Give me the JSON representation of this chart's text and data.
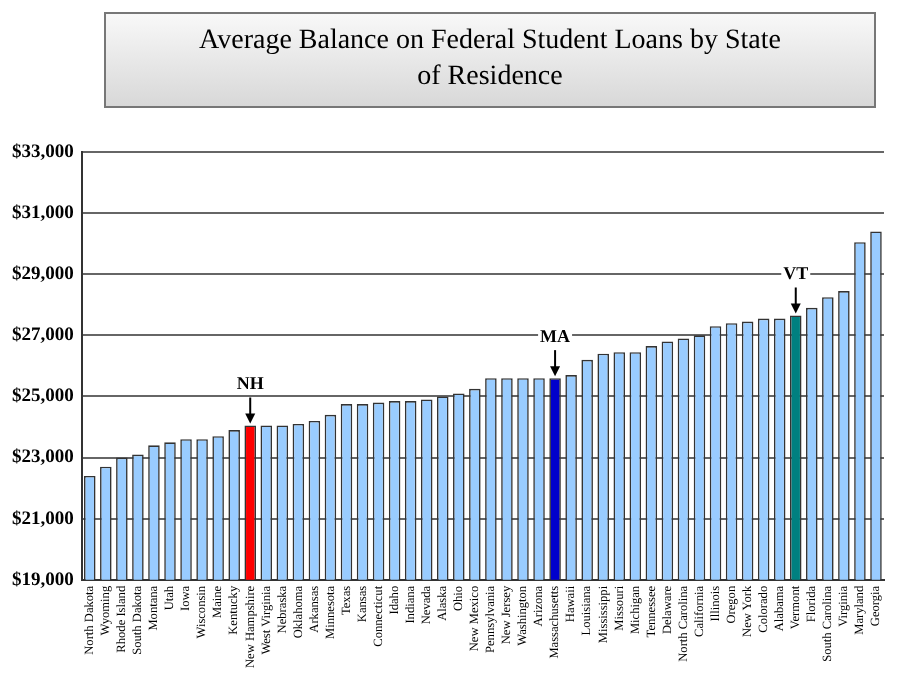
{
  "chart_data": {
    "type": "bar",
    "title": "Average Balance on Federal Student Loans by State of Residence",
    "categories": [
      "North Dakota",
      "Wyoming",
      "Rhode Island",
      "South Dakota",
      "Montana",
      "Utah",
      "Iowa",
      "Wisconsin",
      "Maine",
      "Kentucky",
      "New Hampshire",
      "West Virginia",
      "Nebraska",
      "Oklahoma",
      "Arkansas",
      "Minnesota",
      "Texas",
      "Kansas",
      "Connecticut",
      "Idaho",
      "Indiana",
      "Nevada",
      "Alaska",
      "Ohio",
      "New Mexico",
      "Pennsylvania",
      "New Jersey",
      "Washington",
      "Arizona",
      "Massachusetts",
      "Hawaii",
      "Louisiana",
      "Mississippi",
      "Missouri",
      "Michigan",
      "Tennessee",
      "Delaware",
      "North Carolina",
      "California",
      "Illinois",
      "Oregon",
      "New York",
      "Colorado",
      "Alabama",
      "Vermont",
      "Florida",
      "South Carolina",
      "Virginia",
      "Maryland",
      "Georgia"
    ],
    "values": [
      22400,
      22700,
      23000,
      23100,
      23400,
      23500,
      23600,
      23600,
      23700,
      23900,
      24050,
      24050,
      24050,
      24100,
      24200,
      24400,
      24750,
      24750,
      24800,
      24850,
      24850,
      24900,
      25000,
      25100,
      25250,
      25600,
      25600,
      25600,
      25600,
      25600,
      25700,
      26200,
      26400,
      26450,
      26450,
      26650,
      26800,
      26900,
      27000,
      27300,
      27400,
      27450,
      27550,
      27550,
      27650,
      27900,
      28250,
      28450,
      30050,
      30400
    ],
    "colors": [
      "#99ccff",
      "#99ccff",
      "#99ccff",
      "#99ccff",
      "#99ccff",
      "#99ccff",
      "#99ccff",
      "#99ccff",
      "#99ccff",
      "#99ccff",
      "#ff0000",
      "#99ccff",
      "#99ccff",
      "#99ccff",
      "#99ccff",
      "#99ccff",
      "#99ccff",
      "#99ccff",
      "#99ccff",
      "#99ccff",
      "#99ccff",
      "#99ccff",
      "#99ccff",
      "#99ccff",
      "#99ccff",
      "#99ccff",
      "#99ccff",
      "#99ccff",
      "#99ccff",
      "#0000cc",
      "#99ccff",
      "#99ccff",
      "#99ccff",
      "#99ccff",
      "#99ccff",
      "#99ccff",
      "#99ccff",
      "#99ccff",
      "#99ccff",
      "#99ccff",
      "#99ccff",
      "#99ccff",
      "#99ccff",
      "#99ccff",
      "#008080",
      "#99ccff",
      "#99ccff",
      "#99ccff",
      "#99ccff",
      "#99ccff"
    ],
    "ylim": [
      19000,
      33000
    ],
    "yticks": [
      {
        "value": 19000,
        "label": "$19,000"
      },
      {
        "value": 21000,
        "label": "$21,000"
      },
      {
        "value": 23000,
        "label": "$23,000"
      },
      {
        "value": 25000,
        "label": "$25,000"
      },
      {
        "value": 27000,
        "label": "$27,000"
      },
      {
        "value": 29000,
        "label": "$29,000"
      },
      {
        "value": 31000,
        "label": "$31,000"
      },
      {
        "value": 33000,
        "label": "$33,000"
      }
    ],
    "grid": "y",
    "legend": false,
    "annotations": [
      {
        "text": "NH",
        "x": "New Hampshire",
        "y": 24050
      },
      {
        "text": "MA",
        "x": "Massachusetts",
        "y": 25600
      },
      {
        "text": "VT",
        "x": "Vermont",
        "y": 27650
      }
    ]
  }
}
